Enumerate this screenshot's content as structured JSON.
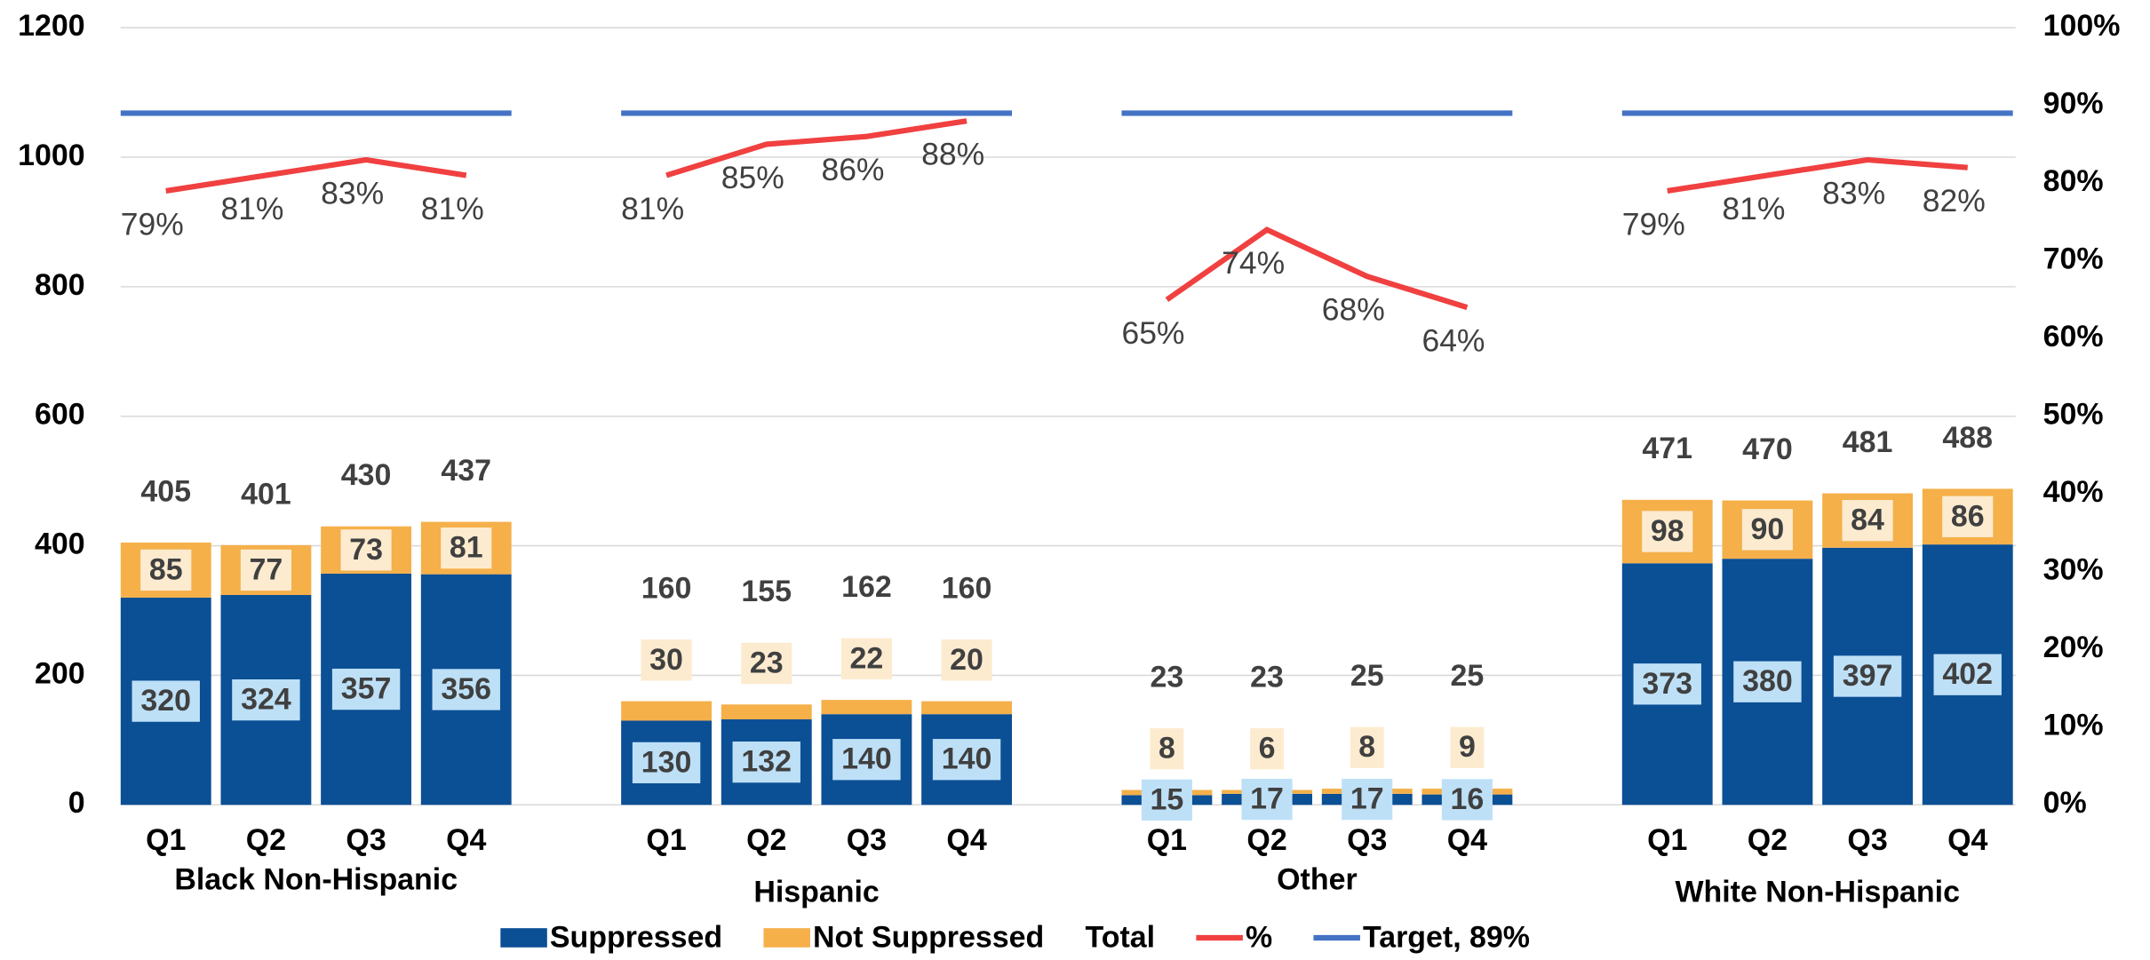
{
  "chart_data": {
    "type": "bar",
    "stacked": true,
    "grid": true,
    "legend": "bottom",
    "categories": [
      "Q1",
      "Q2",
      "Q3",
      "Q4",
      "Q1",
      "Q2",
      "Q3",
      "Q4",
      "Q1",
      "Q2",
      "Q3",
      "Q4",
      "Q1",
      "Q2",
      "Q3",
      "Q4"
    ],
    "groups": [
      "Black Non-Hispanic",
      "Hispanic",
      "Other",
      "White Non-Hispanic"
    ],
    "ylim": [
      0,
      1200
    ],
    "yticks": [
      0,
      200,
      400,
      600,
      800,
      1000,
      1200
    ],
    "y2lim": [
      0,
      100
    ],
    "y2ticks": [
      {
        "value": 0,
        "label": "0%"
      },
      {
        "value": 10,
        "label": "10%"
      },
      {
        "value": 20,
        "label": "20%"
      },
      {
        "value": 30,
        "label": "30%"
      },
      {
        "value": 40,
        "label": "40%"
      },
      {
        "value": 50,
        "label": "50%"
      },
      {
        "value": 60,
        "label": "60%"
      },
      {
        "value": 70,
        "label": "70%"
      },
      {
        "value": 80,
        "label": "80%"
      },
      {
        "value": 90,
        "label": "90%"
      },
      {
        "value": 100,
        "label": "100%"
      }
    ],
    "series": [
      {
        "name": "Suppressed",
        "color": "#0b4f95",
        "values": [
          320,
          324,
          357,
          356,
          130,
          132,
          140,
          140,
          15,
          17,
          17,
          16,
          373,
          380,
          397,
          402
        ]
      },
      {
        "name": "Not Suppressed",
        "color": "#f5b04a",
        "values": [
          85,
          77,
          73,
          81,
          30,
          23,
          22,
          20,
          8,
          6,
          8,
          9,
          98,
          90,
          84,
          86
        ]
      },
      {
        "name": "Total",
        "values": [
          405,
          401,
          430,
          437,
          160,
          155,
          162,
          160,
          23,
          23,
          25,
          25,
          471,
          470,
          481,
          488
        ]
      },
      {
        "name": "%",
        "color": "#f04040",
        "axis": "y2",
        "values": [
          79,
          81,
          83,
          81,
          81,
          85,
          86,
          88,
          65,
          74,
          68,
          64,
          79,
          81,
          83,
          82
        ],
        "value_labels": [
          "79%",
          "81%",
          "83%",
          "81%",
          "81%",
          "85%",
          "86%",
          "88%",
          "65%",
          "74%",
          "68%",
          "64%",
          "79%",
          "81%",
          "83%",
          "82%"
        ]
      },
      {
        "name": "Target, 89%",
        "color": "#4472c4",
        "axis": "y2",
        "values": [
          89,
          89,
          89,
          89,
          89,
          89,
          89,
          89,
          89,
          89,
          89,
          89,
          89,
          89,
          89,
          89
        ]
      }
    ]
  }
}
